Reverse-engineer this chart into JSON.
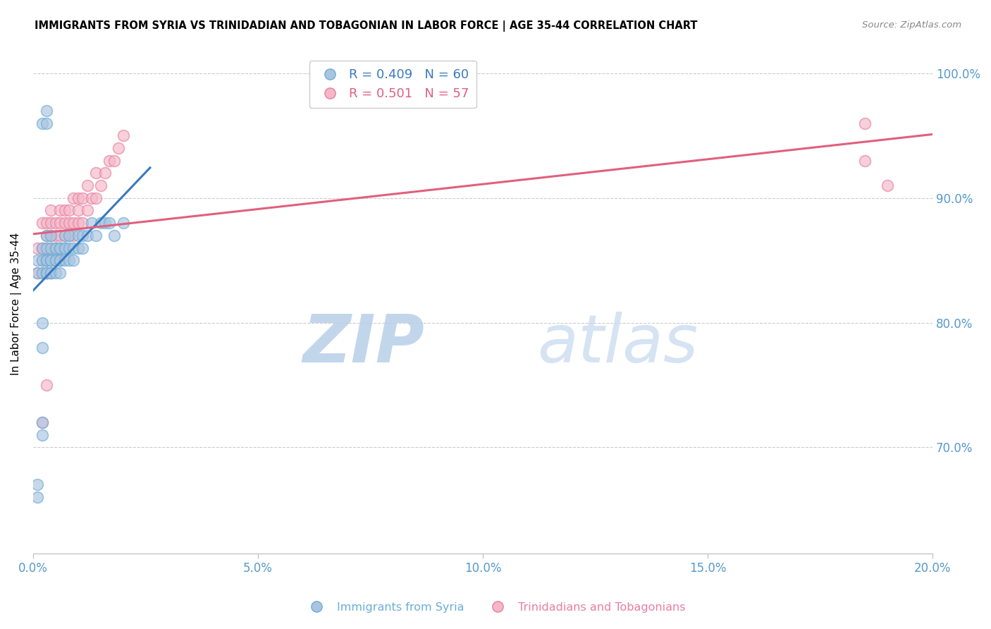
{
  "title": "IMMIGRANTS FROM SYRIA VS TRINIDADIAN AND TOBAGONIAN IN LABOR FORCE | AGE 35-44 CORRELATION CHART",
  "source": "Source: ZipAtlas.com",
  "ylabel": "In Labor Force | Age 35-44",
  "xlim": [
    0.0,
    0.2
  ],
  "ylim": [
    0.615,
    1.015
  ],
  "ytick_labels": [
    "70.0%",
    "80.0%",
    "90.0%",
    "100.0%"
  ],
  "ytick_values": [
    0.7,
    0.8,
    0.9,
    1.0
  ],
  "xtick_labels": [
    "0.0%",
    "5.0%",
    "10.0%",
    "15.0%",
    "20.0%"
  ],
  "xtick_values": [
    0.0,
    0.05,
    0.1,
    0.15,
    0.2
  ],
  "blue_color": "#aac4e0",
  "blue_edge_color": "#6aaed6",
  "pink_color": "#f4b8c8",
  "pink_edge_color": "#e87fa0",
  "blue_line_color": "#3a7abf",
  "pink_line_color": "#e0607e",
  "legend_blue_R": "0.409",
  "legend_blue_N": "60",
  "legend_pink_R": "0.501",
  "legend_pink_N": "57",
  "legend_blue_label": "Immigrants from Syria",
  "legend_pink_label": "Trinidadians and Tobagonians",
  "watermark_zip": "ZIP",
  "watermark_atlas": "atlas",
  "watermark_color": "#cddcf0",
  "right_label_color": "#5599cc",
  "scatter_blue_x": [
    0.001,
    0.001,
    0.001,
    0.001,
    0.002,
    0.002,
    0.002,
    0.002,
    0.002,
    0.002,
    0.003,
    0.003,
    0.003,
    0.003,
    0.003,
    0.003,
    0.003,
    0.003,
    0.003,
    0.004,
    0.004,
    0.004,
    0.004,
    0.004,
    0.004,
    0.004,
    0.005,
    0.005,
    0.005,
    0.005,
    0.005,
    0.006,
    0.006,
    0.006,
    0.006,
    0.006,
    0.007,
    0.007,
    0.007,
    0.007,
    0.008,
    0.008,
    0.008,
    0.009,
    0.009,
    0.01,
    0.01,
    0.011,
    0.011,
    0.012,
    0.013,
    0.014,
    0.015,
    0.016,
    0.017,
    0.018,
    0.02,
    0.002,
    0.002,
    0.003
  ],
  "scatter_blue_y": [
    0.66,
    0.67,
    0.84,
    0.85,
    0.71,
    0.72,
    0.84,
    0.85,
    0.86,
    0.96,
    0.84,
    0.85,
    0.84,
    0.85,
    0.84,
    0.86,
    0.87,
    0.85,
    0.96,
    0.84,
    0.85,
    0.84,
    0.85,
    0.86,
    0.87,
    0.85,
    0.84,
    0.85,
    0.86,
    0.85,
    0.86,
    0.84,
    0.85,
    0.85,
    0.86,
    0.86,
    0.85,
    0.86,
    0.86,
    0.87,
    0.85,
    0.86,
    0.87,
    0.85,
    0.86,
    0.86,
    0.87,
    0.86,
    0.87,
    0.87,
    0.88,
    0.87,
    0.88,
    0.88,
    0.88,
    0.87,
    0.88,
    0.78,
    0.8,
    0.97
  ],
  "scatter_pink_x": [
    0.001,
    0.001,
    0.002,
    0.002,
    0.002,
    0.002,
    0.003,
    0.003,
    0.003,
    0.003,
    0.003,
    0.004,
    0.004,
    0.004,
    0.004,
    0.004,
    0.004,
    0.005,
    0.005,
    0.005,
    0.005,
    0.006,
    0.006,
    0.006,
    0.006,
    0.006,
    0.007,
    0.007,
    0.007,
    0.007,
    0.008,
    0.008,
    0.008,
    0.009,
    0.009,
    0.009,
    0.01,
    0.01,
    0.01,
    0.011,
    0.011,
    0.012,
    0.012,
    0.013,
    0.014,
    0.014,
    0.015,
    0.016,
    0.017,
    0.018,
    0.019,
    0.02,
    0.185,
    0.185,
    0.19,
    0.002,
    0.003
  ],
  "scatter_pink_y": [
    0.84,
    0.86,
    0.84,
    0.85,
    0.86,
    0.88,
    0.84,
    0.85,
    0.86,
    0.87,
    0.88,
    0.84,
    0.85,
    0.86,
    0.87,
    0.88,
    0.89,
    0.85,
    0.86,
    0.87,
    0.88,
    0.85,
    0.86,
    0.87,
    0.88,
    0.89,
    0.86,
    0.87,
    0.88,
    0.89,
    0.87,
    0.88,
    0.89,
    0.87,
    0.88,
    0.9,
    0.88,
    0.89,
    0.9,
    0.88,
    0.9,
    0.89,
    0.91,
    0.9,
    0.9,
    0.92,
    0.91,
    0.92,
    0.93,
    0.93,
    0.94,
    0.95,
    0.93,
    0.96,
    0.91,
    0.72,
    0.75
  ]
}
